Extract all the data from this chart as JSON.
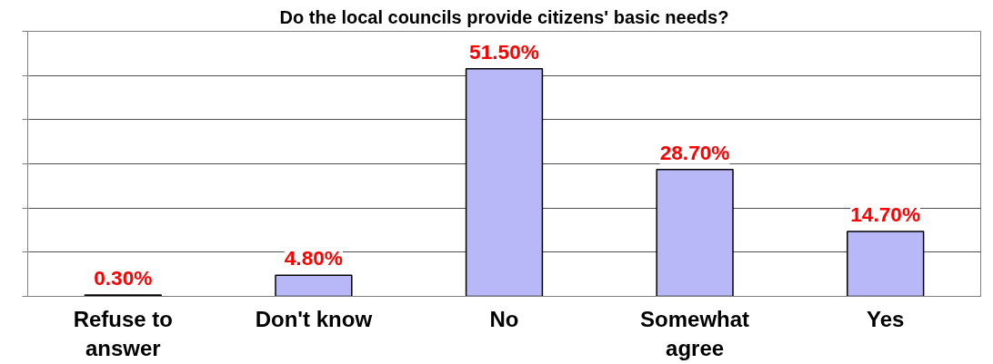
{
  "chart_data": {
    "type": "bar",
    "title": "Do the local councils provide citizens' basic needs?",
    "categories": [
      "Refuse to answer",
      "Don't know",
      "No",
      "Somewhat agree",
      "Yes"
    ],
    "values": [
      0.3,
      4.8,
      51.5,
      28.7,
      14.7
    ],
    "value_labels": [
      "0.30%",
      "4.80%",
      "51.50%",
      "28.70%",
      "14.70%"
    ],
    "color": "#b8b8f8",
    "ylim": [
      0,
      60
    ],
    "yticks": [
      {
        "value": 0,
        "label": null
      },
      {
        "value": 10,
        "label": null
      },
      {
        "value": 20,
        "label": null
      },
      {
        "value": 30,
        "label": null
      },
      {
        "value": 40,
        "label": null
      },
      {
        "value": 50,
        "label": null
      },
      {
        "value": 60,
        "label": null
      }
    ],
    "tick_labels": "x",
    "grid": "y"
  }
}
